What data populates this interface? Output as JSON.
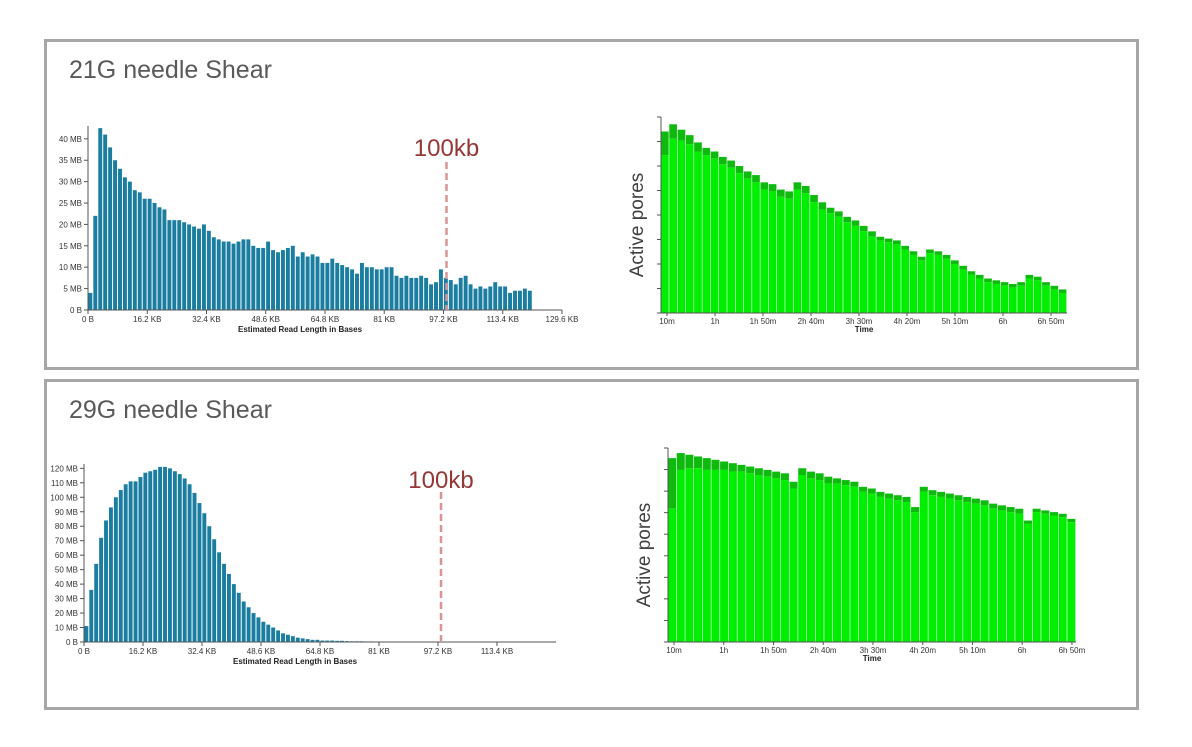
{
  "panels": [
    {
      "title": "21G needle Shear",
      "marker_label": "100kb"
    },
    {
      "title": "29G needle Shear",
      "marker_label": "100kb"
    }
  ],
  "colors": {
    "bar": "#1b7ea1",
    "pores_dark": "#0fba0f",
    "pores_light": "#00ee00",
    "marker": "#d99594",
    "panel_border": "#a6a6a6"
  },
  "chart_data": [
    {
      "type": "bar",
      "chart": "read-length-histogram-21G",
      "xlabel": "Estimated Read Length in Bases",
      "x_ticks": [
        "0 B",
        "16.2 KB",
        "32.4 KB",
        "48.6 KB",
        "64.8 KB",
        "81 KB",
        "97.2 KB",
        "113.4 KB",
        "129.6 KB"
      ],
      "y_ticks": [
        "0 B",
        "5 MB",
        "10 MB",
        "15 MB",
        "20 MB",
        "25 MB",
        "30 MB",
        "35 MB",
        "40 MB"
      ],
      "xlim": [
        0,
        129.6
      ],
      "ylim": [
        0,
        43
      ],
      "bin_width_kb": 1.35,
      "values_mb": [
        4,
        22,
        42.5,
        41,
        38,
        35,
        33,
        31,
        30,
        28,
        27.5,
        26,
        26,
        25,
        24,
        23.5,
        21,
        21,
        21,
        20.5,
        20,
        19.5,
        19,
        20,
        18.5,
        17,
        16.5,
        16,
        16,
        15.5,
        16,
        16.5,
        16.5,
        15,
        14.5,
        14.5,
        16,
        14,
        13.5,
        14,
        14.5,
        15,
        12.5,
        13.5,
        12.5,
        13,
        12.5,
        11,
        11,
        12,
        11,
        10.5,
        10,
        9.5,
        8.5,
        11,
        10,
        10,
        9.5,
        9.5,
        10,
        10,
        8,
        7.5,
        8,
        7.5,
        7.5,
        8,
        7.5,
        6,
        6.5,
        9.5,
        7.5,
        7,
        6,
        7.5,
        8,
        6,
        5,
        5.5,
        5,
        5.5,
        6.5,
        5.5,
        5.5,
        4,
        4.5,
        4.5,
        5,
        4.5
      ],
      "marker_x": 97.2,
      "marker_label": "100kb"
    },
    {
      "type": "bar",
      "chart": "active-pores-21G",
      "ylabel": "Active pores",
      "xlabel": "Time",
      "x_ticks": [
        "10m",
        "1h",
        "1h 50m",
        "2h 40m",
        "3h 30m",
        "4h 20m",
        "5h 10m",
        "6h",
        "6h 50m"
      ],
      "values": [
        100,
        104,
        101,
        98,
        94,
        91,
        89,
        86,
        84,
        81,
        78,
        76,
        72,
        71,
        68,
        67,
        72,
        70,
        65,
        61,
        58,
        56,
        53,
        51,
        48,
        45,
        42,
        41,
        40,
        37,
        34,
        31,
        35,
        34,
        32,
        29,
        26,
        23,
        21,
        19,
        18,
        17,
        16,
        17,
        21,
        20,
        17,
        15,
        13
      ],
      "dark_band": [
        13,
        8,
        6,
        5,
        5,
        4,
        4,
        4,
        4,
        4,
        4,
        4,
        4,
        4,
        4,
        4,
        4,
        4,
        4,
        4,
        3,
        3,
        3,
        3,
        3,
        3,
        2,
        2,
        2,
        2,
        2,
        2,
        2,
        2,
        2,
        2,
        2,
        2,
        2,
        2,
        2,
        2,
        2,
        2,
        2,
        2,
        2,
        2,
        2
      ]
    },
    {
      "type": "bar",
      "chart": "read-length-histogram-29G",
      "xlabel": "Estimated Read Length in Bases",
      "x_ticks": [
        "0 B",
        "16.2 KB",
        "32.4 KB",
        "48.6 KB",
        "64.8 KB",
        "81 KB",
        "97.2 KB",
        "113.4 KB"
      ],
      "y_ticks": [
        "0 B",
        "10 MB",
        "20 MB",
        "30 MB",
        "40 MB",
        "50 MB",
        "60 MB",
        "70 MB",
        "80 MB",
        "90 MB",
        "100 MB",
        "110 MB",
        "120 MB"
      ],
      "xlim": [
        0,
        129.6
      ],
      "ylim": [
        0,
        123
      ],
      "bin_width_kb": 1.35,
      "values_mb": [
        11,
        36,
        54,
        72,
        84,
        93,
        100,
        105,
        109,
        111,
        111,
        114,
        117,
        118,
        119,
        121,
        121,
        120,
        118,
        116,
        113,
        109,
        103,
        96,
        89,
        80,
        71,
        62,
        54,
        47,
        40,
        34,
        28,
        24,
        20,
        17,
        14,
        12,
        10,
        8,
        6,
        5,
        4,
        3,
        2.5,
        2,
        1.5,
        1.5,
        1,
        1,
        1,
        0.8,
        0.8,
        0.6,
        0.5,
        0.5,
        0.5,
        0.4,
        0.4,
        0.3,
        0.3,
        0.3,
        0.3,
        0.3,
        0.3,
        0.2,
        0.2,
        0.2
      ],
      "marker_x": 97.2,
      "marker_label": "100kb"
    },
    {
      "type": "bar",
      "chart": "active-pores-29G",
      "ylabel": "Active pores",
      "xlabel": "Time",
      "x_ticks": [
        "10m",
        "1h",
        "1h 50m",
        "2h 40m",
        "3h 30m",
        "4h 20m",
        "5h 10m",
        "6h",
        "6h 50m"
      ],
      "values": [
        109,
        112,
        111,
        110,
        109,
        108,
        107,
        106,
        105,
        104,
        103,
        102,
        101,
        100,
        95,
        103,
        101,
        100,
        98,
        97,
        96,
        95,
        92,
        91,
        89,
        88,
        87,
        86,
        80,
        92,
        90,
        89,
        88,
        87,
        86,
        85,
        84,
        82,
        81,
        80,
        79,
        72,
        79,
        78,
        77,
        76,
        73
      ],
      "dark_band": [
        30,
        10,
        8,
        7,
        7,
        6,
        5,
        5,
        4,
        4,
        4,
        4,
        4,
        4,
        4,
        4,
        4,
        4,
        4,
        3,
        3,
        3,
        3,
        3,
        3,
        3,
        3,
        3,
        3,
        3,
        3,
        3,
        3,
        3,
        3,
        3,
        3,
        3,
        3,
        3,
        3,
        2,
        2,
        2,
        2,
        2,
        2
      ]
    }
  ]
}
